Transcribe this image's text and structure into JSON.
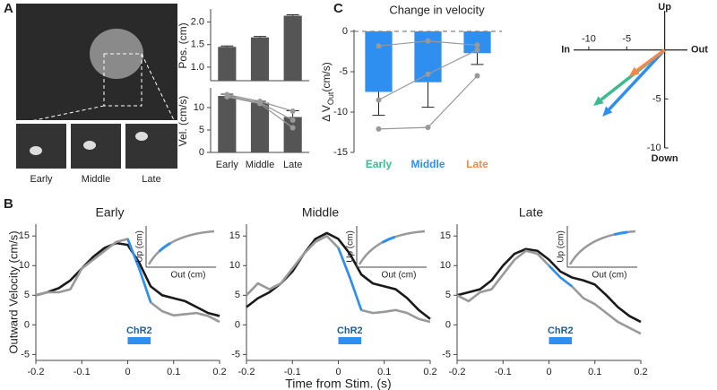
{
  "panel_labels": [
    "A",
    "B",
    "C"
  ],
  "photo_labels": [
    "Early",
    "Middle",
    "Late"
  ],
  "chart_data": [
    {
      "type": "bar",
      "ylabel": "Pos. (cm)",
      "values": [
        1.45,
        1.66,
        2.14
      ],
      "errors": [
        0.02,
        0.02,
        0.02
      ],
      "color": "#555555",
      "ylim": [
        0.7,
        2.25
      ],
      "yticks": [
        {
          "value": 1,
          "label": "1.0"
        },
        {
          "value": 1.5,
          "label": "1.5"
        },
        {
          "value": 2,
          "label": "2.0"
        }
      ]
    },
    {
      "type": "bar",
      "ylabel": "Vel. (cm/s)",
      "categories": [
        "Early",
        "Middle",
        "Late"
      ],
      "values": [
        12.6,
        11.1,
        7.9
      ],
      "errors": [
        0.4,
        0.3,
        1.4
      ],
      "color": "#555555",
      "ylim": [
        0,
        14
      ],
      "yticks": [
        0,
        5,
        10
      ],
      "points": [
        [
          12.9,
          11.4,
          9.2
        ],
        [
          12.6,
          11.1,
          7.2
        ],
        [
          12.4,
          10.9,
          5.5
        ]
      ]
    },
    {
      "type": "bar",
      "title": "Change in velocity",
      "ylabel": "Δ V",
      "ylabel_sub": "Out",
      "ylabel_unit": "(cm/s)",
      "categories": [
        "Early",
        "Middle",
        "Late"
      ],
      "category_colors": [
        "#3dbb8f",
        "#2f8ff0",
        "#f08a4b"
      ],
      "values": [
        -7.5,
        -6.3,
        -2.7
      ],
      "errors": [
        2.9,
        3.1,
        1.4
      ],
      "color": "#2f8ff0",
      "ylim": [
        -15,
        0
      ],
      "yticks": [
        0,
        -5,
        -10,
        -15
      ],
      "zero_line": true,
      "points": [
        [
          -1.8,
          -1.2,
          -1.7
        ],
        [
          -8.5,
          -5.3,
          -2.3
        ],
        [
          -12.1,
          -11.9,
          -5.5
        ]
      ]
    },
    {
      "type": "vector",
      "xlabel_neg": "In",
      "xlabel_pos": "Out",
      "ylabel_pos": "Up",
      "ylabel_neg": "Down",
      "xlim": [
        -12,
        3
      ],
      "ylim": [
        -10,
        4
      ],
      "xticks": [
        -10,
        -5
      ],
      "yticks": [
        -5,
        -10
      ],
      "series": [
        {
          "color": "#3dbb8f",
          "x": -9.4,
          "y": -5.7
        },
        {
          "color": "#2f8ff0",
          "x": -8.2,
          "y": -6.8
        },
        {
          "color": "#f08a4b",
          "x": -4.7,
          "y": -2.7
        }
      ]
    },
    {
      "type": "line",
      "title": "Early",
      "ylabel": "Outward Velocity (cm/s)",
      "x": [
        -0.2,
        -0.175,
        -0.15,
        -0.125,
        -0.1,
        -0.075,
        -0.05,
        -0.025,
        0,
        0.025,
        0.05,
        0.075,
        0.1,
        0.125,
        0.15,
        0.175,
        0.2
      ],
      "xlim": [
        -0.2,
        0.2
      ],
      "xticks": [
        -0.2,
        -0.1,
        0,
        0.1,
        0.2
      ],
      "ylim": [
        -6,
        17
      ],
      "yticks": [
        -5,
        0,
        5,
        10,
        15
      ],
      "series": [
        {
          "color": "#1a1a1a",
          "values": [
            5,
            5.5,
            6.2,
            7.5,
            9.5,
            11.5,
            13,
            13.8,
            13.5,
            10.5,
            6.5,
            5,
            4.5,
            4,
            3,
            2,
            1.5
          ]
        },
        {
          "color": "#999999",
          "values": [
            5,
            5.5,
            5.5,
            6,
            9.5,
            11,
            12.5,
            14,
            14.5,
            9.5,
            3.8,
            2.3,
            1.6,
            1.8,
            2,
            1.5,
            0.5
          ]
        },
        {
          "color": "#2f8ff0",
          "values": [
            null,
            null,
            null,
            null,
            null,
            null,
            null,
            null,
            14.5,
            9.5,
            3.8,
            null,
            null,
            null,
            null,
            null,
            null
          ]
        }
      ],
      "annotation": "ChR2",
      "stim": [
        0,
        0.05
      ],
      "inset_xlabel": "Out (cm)",
      "inset_ylabel": "Up (cm)"
    },
    {
      "type": "line",
      "title": "Middle",
      "xlabel": "Time from Stim. (s)",
      "x": [
        -0.2,
        -0.175,
        -0.15,
        -0.125,
        -0.1,
        -0.075,
        -0.05,
        -0.025,
        0,
        0.025,
        0.05,
        0.075,
        0.1,
        0.125,
        0.15,
        0.175,
        0.2
      ],
      "xlim": [
        -0.2,
        0.2
      ],
      "xticks": [
        -0.2,
        -0.1,
        0,
        0.1,
        0.2
      ],
      "ylim": [
        -6,
        17
      ],
      "yticks": [
        -5,
        0,
        5,
        10,
        15
      ],
      "series": [
        {
          "color": "#1a1a1a",
          "values": [
            3,
            4.5,
            5.5,
            7,
            9,
            12,
            14.5,
            15.5,
            14.5,
            12,
            8.5,
            7,
            6.5,
            6,
            4.5,
            2.5,
            1
          ]
        },
        {
          "color": "#999999",
          "values": [
            5,
            7,
            6,
            7,
            9.5,
            12,
            14,
            15,
            13,
            8,
            2.5,
            2,
            2.2,
            2.5,
            2,
            1,
            0.5
          ]
        },
        {
          "color": "#2f8ff0",
          "values": [
            null,
            null,
            null,
            null,
            null,
            null,
            null,
            null,
            13,
            8,
            2.5,
            null,
            null,
            null,
            null,
            null,
            null
          ]
        }
      ],
      "annotation": "ChR2",
      "stim": [
        0,
        0.05
      ],
      "inset_xlabel": "Out (cm)",
      "inset_ylabel": "Up (cm)"
    },
    {
      "type": "line",
      "title": "Late",
      "x": [
        -0.2,
        -0.175,
        -0.15,
        -0.125,
        -0.1,
        -0.075,
        -0.05,
        -0.025,
        0,
        0.025,
        0.05,
        0.075,
        0.1,
        0.125,
        0.15,
        0.175,
        0.2
      ],
      "xlim": [
        -0.2,
        0.2
      ],
      "xticks": [
        -0.2,
        -0.1,
        0,
        0.1,
        0.2
      ],
      "ylim": [
        -6,
        17
      ],
      "yticks": [
        -5,
        0,
        5,
        10,
        15
      ],
      "series": [
        {
          "color": "#1a1a1a",
          "values": [
            5,
            5.5,
            6,
            7.5,
            10,
            12,
            12.8,
            12.5,
            11,
            9,
            8,
            7.5,
            6.8,
            5,
            3,
            1.5,
            0.5
          ]
        },
        {
          "color": "#999999",
          "values": [
            5,
            4,
            5.5,
            6,
            8.5,
            11,
            12.5,
            12,
            10,
            8,
            6.5,
            4.5,
            3.5,
            2,
            0.5,
            -0.5,
            -1.5
          ]
        },
        {
          "color": "#2f8ff0",
          "values": [
            null,
            null,
            null,
            null,
            null,
            null,
            null,
            null,
            10,
            8,
            6.5,
            null,
            null,
            null,
            null,
            null,
            null
          ]
        }
      ],
      "annotation": "ChR2",
      "stim": [
        0,
        0.05
      ],
      "inset_xlabel": "Out (cm)",
      "inset_ylabel": "Up (cm)"
    }
  ]
}
